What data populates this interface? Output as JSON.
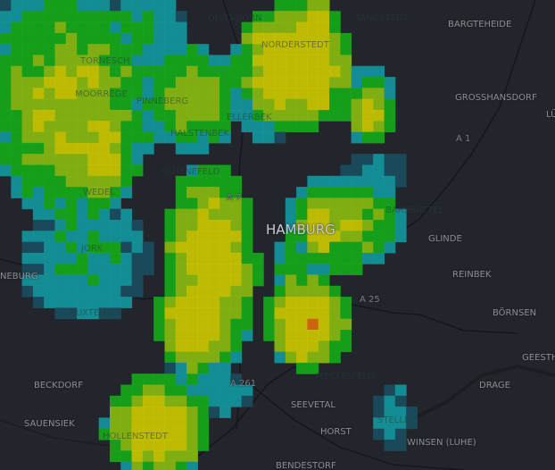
{
  "map": {
    "type": "weather radar overlay",
    "base_style": "dark",
    "colors": {
      "background": "#22252b",
      "radar_scale": [
        "#1a4c5c",
        "#13959c",
        "#15a81a",
        "#86b810",
        "#c8c600",
        "#d8680e"
      ]
    },
    "city_label": "HAMBURG",
    "places": [
      "QUICKBORN",
      "TANGSTEDT",
      "BARGTEHEIDE",
      "NORDERSTEDT",
      "TORNESCH",
      "MOORREGE",
      "PINNEBERG",
      "ELLERBEK",
      "GROSSHANSDORF",
      "HALSTENBEK",
      "SCHENEFELD",
      "WEDEL",
      "BARSBÜTTEL",
      "GLINDE",
      "JORK",
      "NEBURG",
      "REINBEK",
      "BÖRNSEN",
      "BUXTEHUDE",
      "GEESTH",
      "BECKDORF",
      "DRAGE",
      "MECKELFELD",
      "SEEVETAL",
      "STELLE",
      "SAUENSIEK",
      "HORST",
      "HOLLENSTEDT",
      "WINSEN (LUHE)",
      "BENDESTORF",
      "LÜ"
    ],
    "roads": [
      "A 1",
      "A 7",
      "A 25",
      "A 261"
    ]
  }
}
